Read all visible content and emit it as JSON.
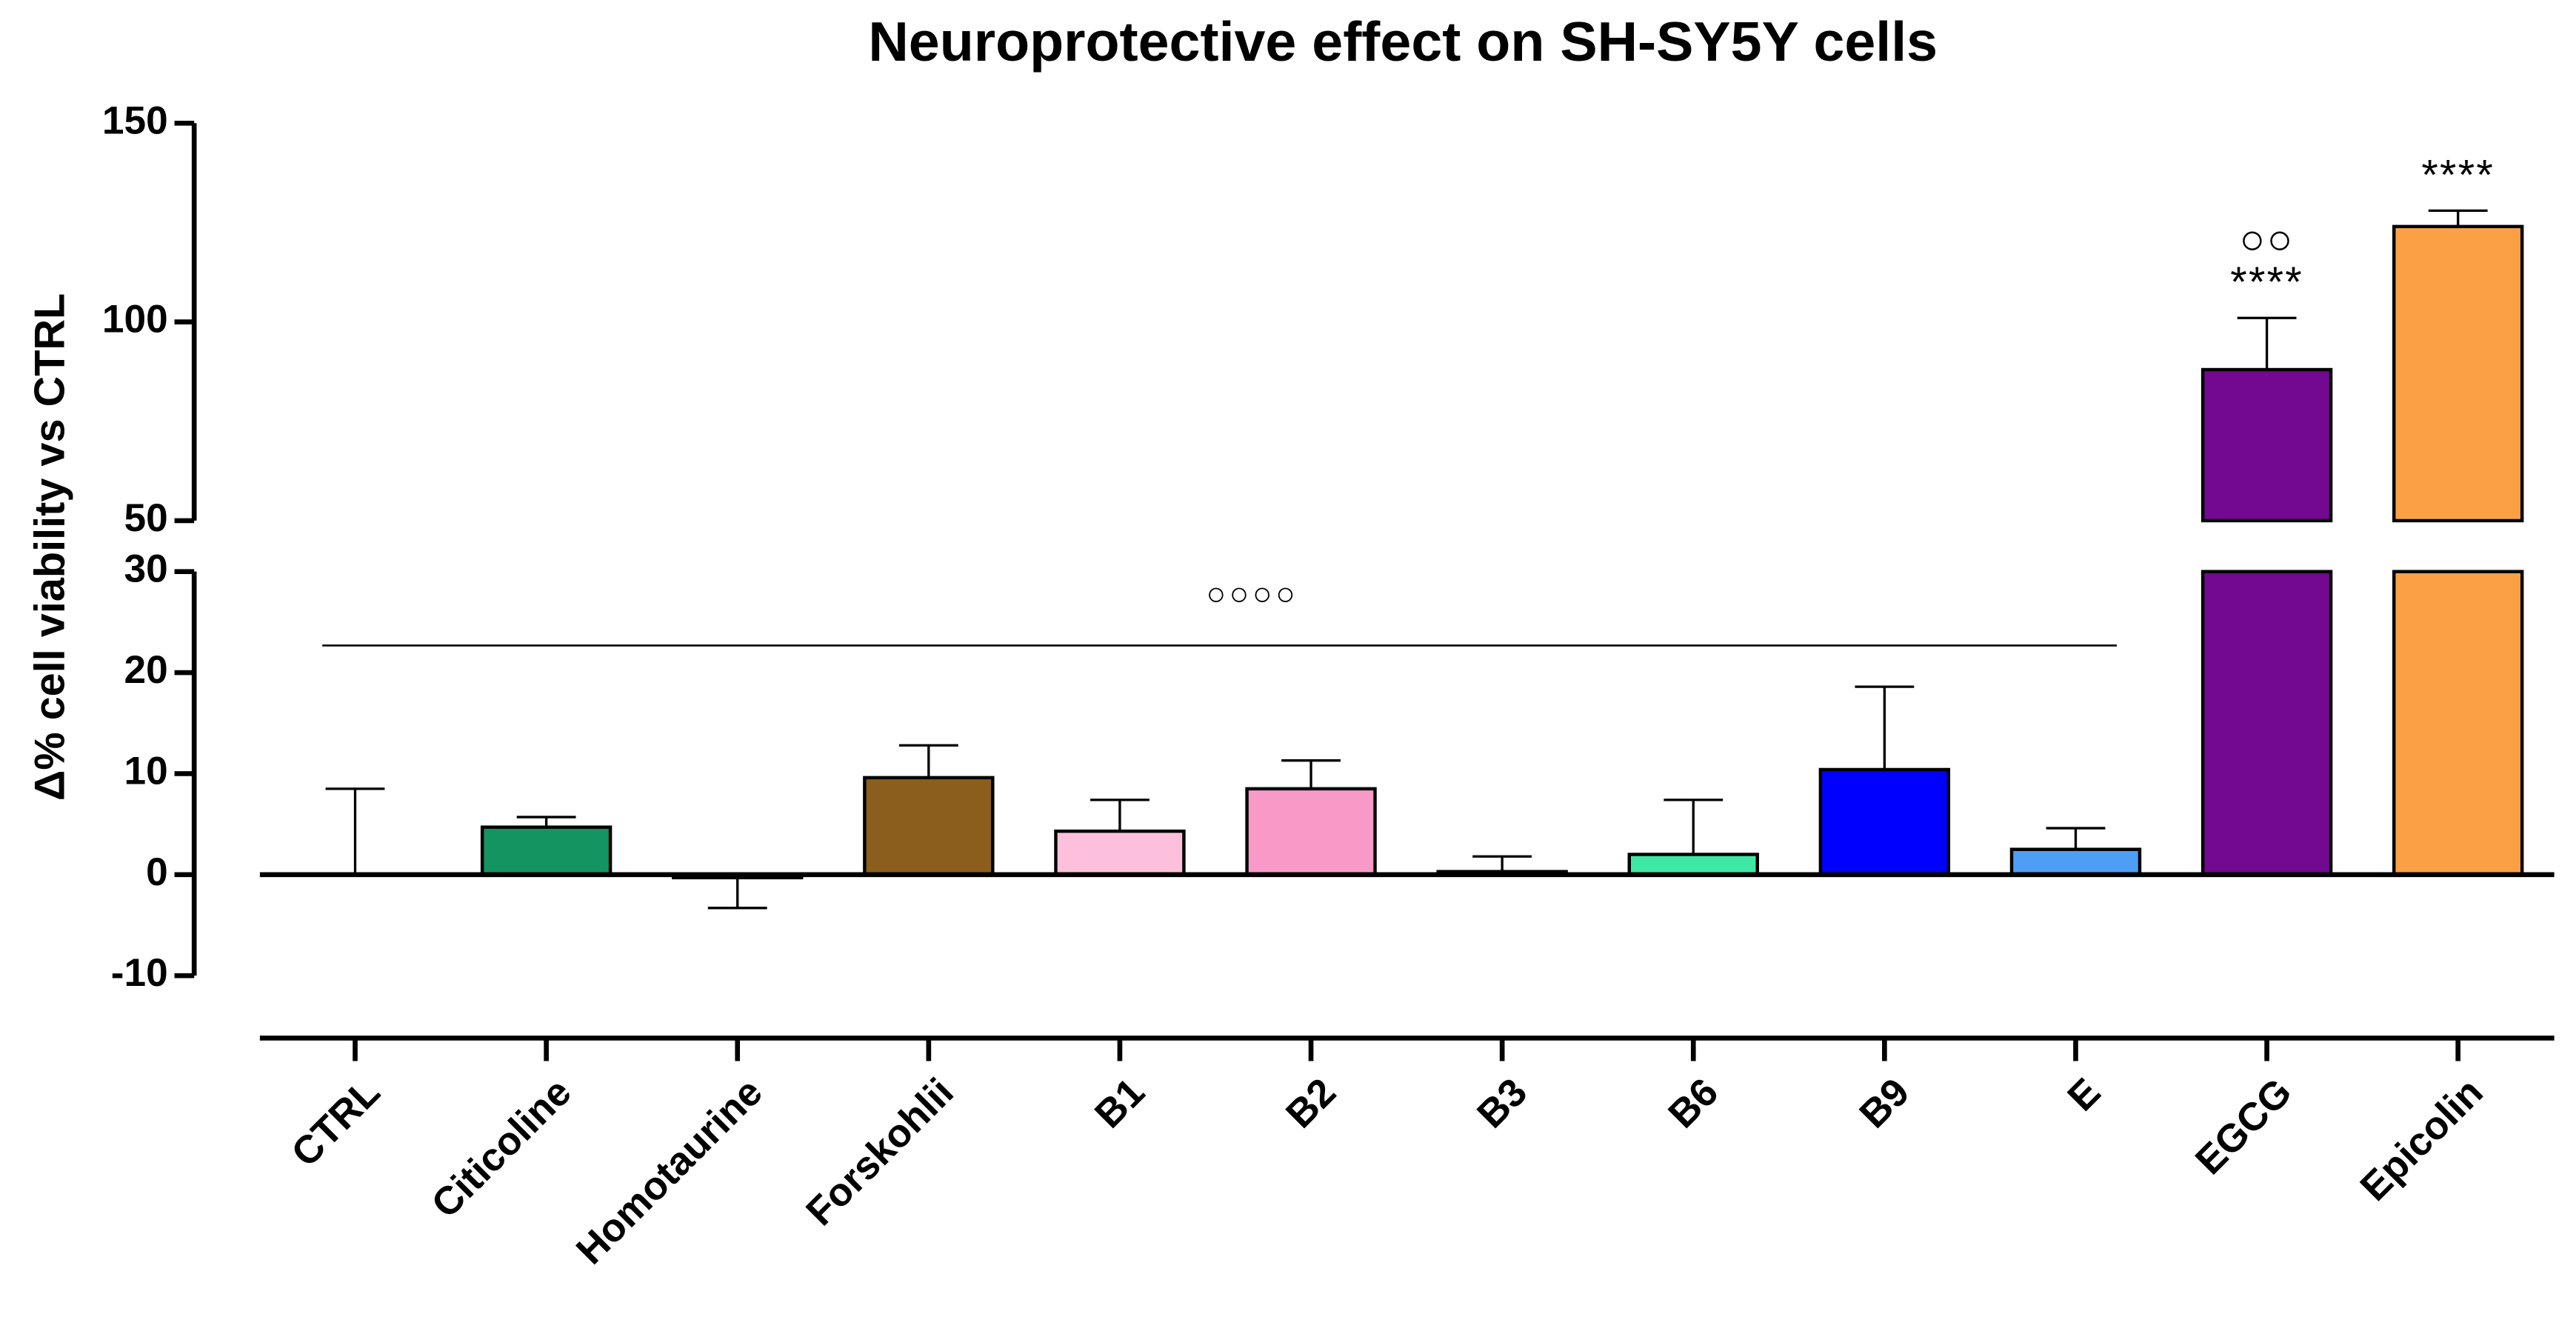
{
  "chart_data": {
    "type": "bar",
    "title": "Neuroprotective effect on SH-SY5Y cells",
    "y_label": "Δ% cell viability vs CTRL",
    "categories": [
      "CTRL",
      "Citicoline",
      "Homotaurine",
      "Forskohlii",
      "B1",
      "B2",
      "B3",
      "B6",
      "B9",
      "E",
      "EGCG",
      "Epicolin"
    ],
    "values": [
      0,
      4.7,
      -0.3,
      9.6,
      4.3,
      8.5,
      0.3,
      2.0,
      10.4,
      2.5,
      88,
      124
    ],
    "errors": [
      8.5,
      1.0,
      3.0,
      3.2,
      3.1,
      2.8,
      1.5,
      5.4,
      8.2,
      2.1,
      13,
      4
    ],
    "colors": [
      "#ffffff",
      "#139461",
      "#ffffff",
      "#8b5e1e",
      "#fcc0dc",
      "#f899c8",
      "#ffffff",
      "#3ee8a4",
      "#0000ff",
      "#4f9ef6",
      "#730891",
      "#fca045"
    ],
    "ylim": [
      -10,
      150
    ],
    "ybreak": [
      30,
      50
    ],
    "yticks": [
      -10,
      0,
      10,
      20,
      30,
      50,
      100,
      150
    ],
    "annotations": [
      {
        "text": "****",
        "category": "EGCG"
      },
      {
        "text": "○○",
        "category": "EGCG"
      },
      {
        "text": "****",
        "category": "Epicolin"
      },
      {
        "text": "○○○○",
        "from": "CTRL",
        "to": "E"
      }
    ]
  }
}
